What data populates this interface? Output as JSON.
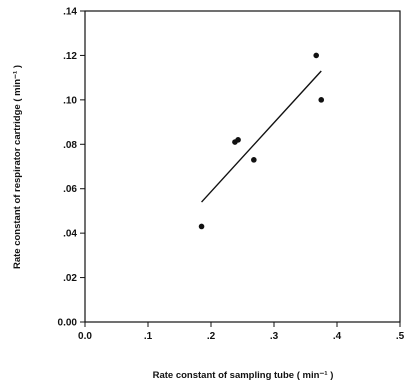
{
  "chart_data": {
    "type": "scatter",
    "xlabel": "Rate constant of sampling tube ( min⁻¹ )",
    "ylabel": "Rate constant of respirator cartridge ( min⁻¹ )",
    "xlim": [
      0.0,
      0.5
    ],
    "ylim": [
      0.0,
      0.14
    ],
    "x_ticks": [
      0.0,
      0.1,
      0.2,
      0.3,
      0.4,
      0.5
    ],
    "x_tick_labels": [
      "0.0",
      ".1",
      ".2",
      ".3",
      ".4",
      ".5"
    ],
    "y_ticks": [
      0.0,
      0.02,
      0.04,
      0.06,
      0.08,
      0.1,
      0.12,
      0.14
    ],
    "y_tick_labels": [
      "0.00",
      ".02",
      ".04",
      ".06",
      ".08",
      ".10",
      ".12",
      ".14"
    ],
    "grid": false,
    "points": [
      {
        "x": 0.185,
        "y": 0.043
      },
      {
        "x": 0.238,
        "y": 0.081
      },
      {
        "x": 0.243,
        "y": 0.082
      },
      {
        "x": 0.268,
        "y": 0.073
      },
      {
        "x": 0.367,
        "y": 0.12
      },
      {
        "x": 0.375,
        "y": 0.1
      }
    ],
    "fit_line": {
      "x": [
        0.185,
        0.375
      ],
      "y": [
        0.054,
        0.113
      ]
    }
  }
}
